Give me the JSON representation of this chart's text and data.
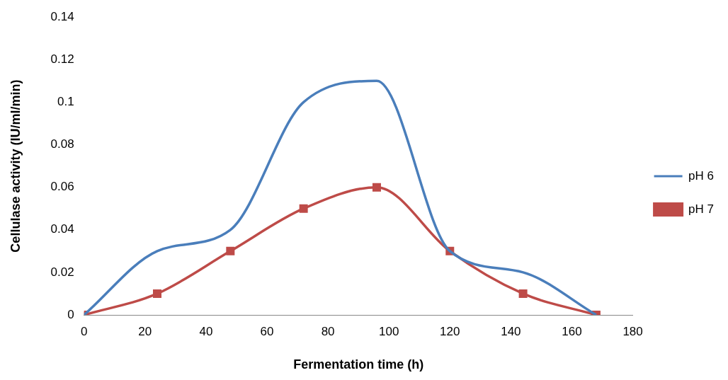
{
  "chart_data": {
    "type": "line",
    "xlabel": "Fermentation time (h)",
    "ylabel": "Cellulase activity (IU/ml/min)",
    "x": [
      0,
      24,
      48,
      72,
      96,
      120,
      144,
      168
    ],
    "series": [
      {
        "name": "pH 6",
        "color": "#4a7ebb",
        "marker": "none",
        "values": [
          0,
          0.03,
          0.04,
          0.1,
          0.11,
          0.03,
          0.02,
          0
        ]
      },
      {
        "name": "pH 7",
        "color": "#be4b48",
        "marker": "square",
        "values": [
          0,
          0.01,
          0.03,
          0.05,
          0.06,
          0.03,
          0.01,
          0
        ]
      }
    ],
    "xlim": [
      0,
      180
    ],
    "xticks": [
      0,
      20,
      40,
      60,
      80,
      100,
      120,
      140,
      160,
      180
    ],
    "ylim": [
      0,
      0.14
    ],
    "yticks": [
      0,
      0.02,
      0.04,
      0.06,
      0.08,
      0.1,
      0.12,
      0.14
    ],
    "grid": false,
    "legend": "right",
    "line_style": "solid"
  }
}
